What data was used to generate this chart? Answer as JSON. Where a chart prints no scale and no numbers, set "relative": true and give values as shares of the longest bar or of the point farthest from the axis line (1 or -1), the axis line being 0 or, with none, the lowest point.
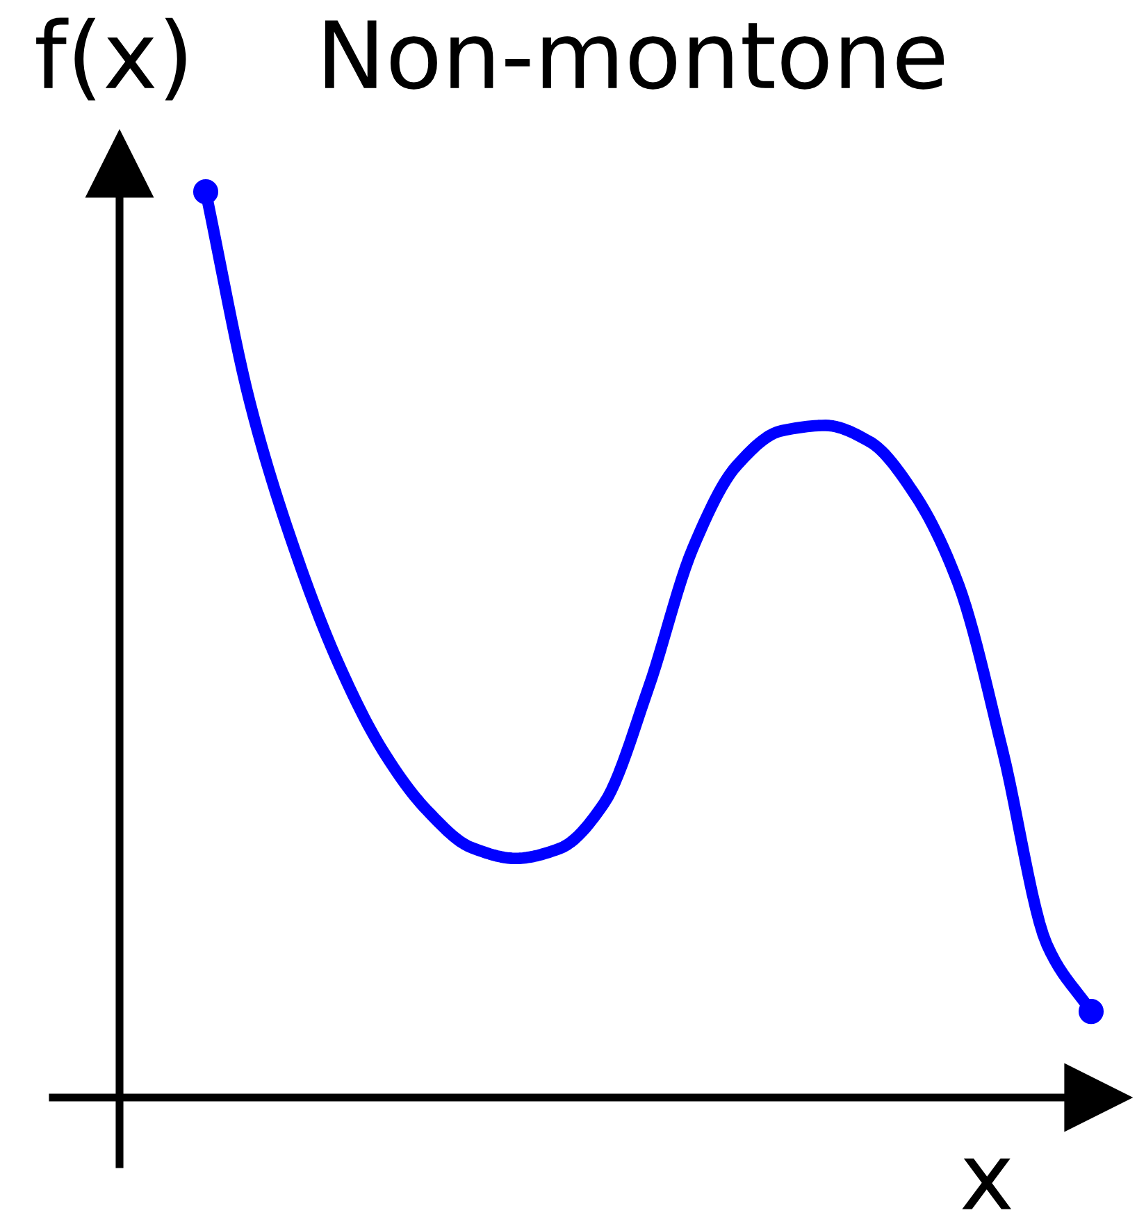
{
  "chart_data": {
    "type": "line",
    "title": "Non-montone",
    "xlabel": "x",
    "ylabel": "f(x)",
    "relative": true,
    "line_style": "solid",
    "categories": [
      null,
      null,
      null,
      null,
      null,
      null,
      null,
      null,
      null,
      null,
      null,
      null,
      null,
      null,
      null,
      null,
      null,
      null,
      null,
      null,
      null
    ],
    "series": [
      {
        "color": "#0000ff",
        "values": [
          1.0,
          0.767,
          0.606,
          0.479,
          0.383,
          0.317,
          0.276,
          0.264,
          0.275,
          0.325,
          0.452,
          0.606,
          0.698,
          0.736,
          0.742,
          0.724,
          0.667,
          0.567,
          0.383,
          0.169,
          0.095
        ]
      }
    ]
  }
}
